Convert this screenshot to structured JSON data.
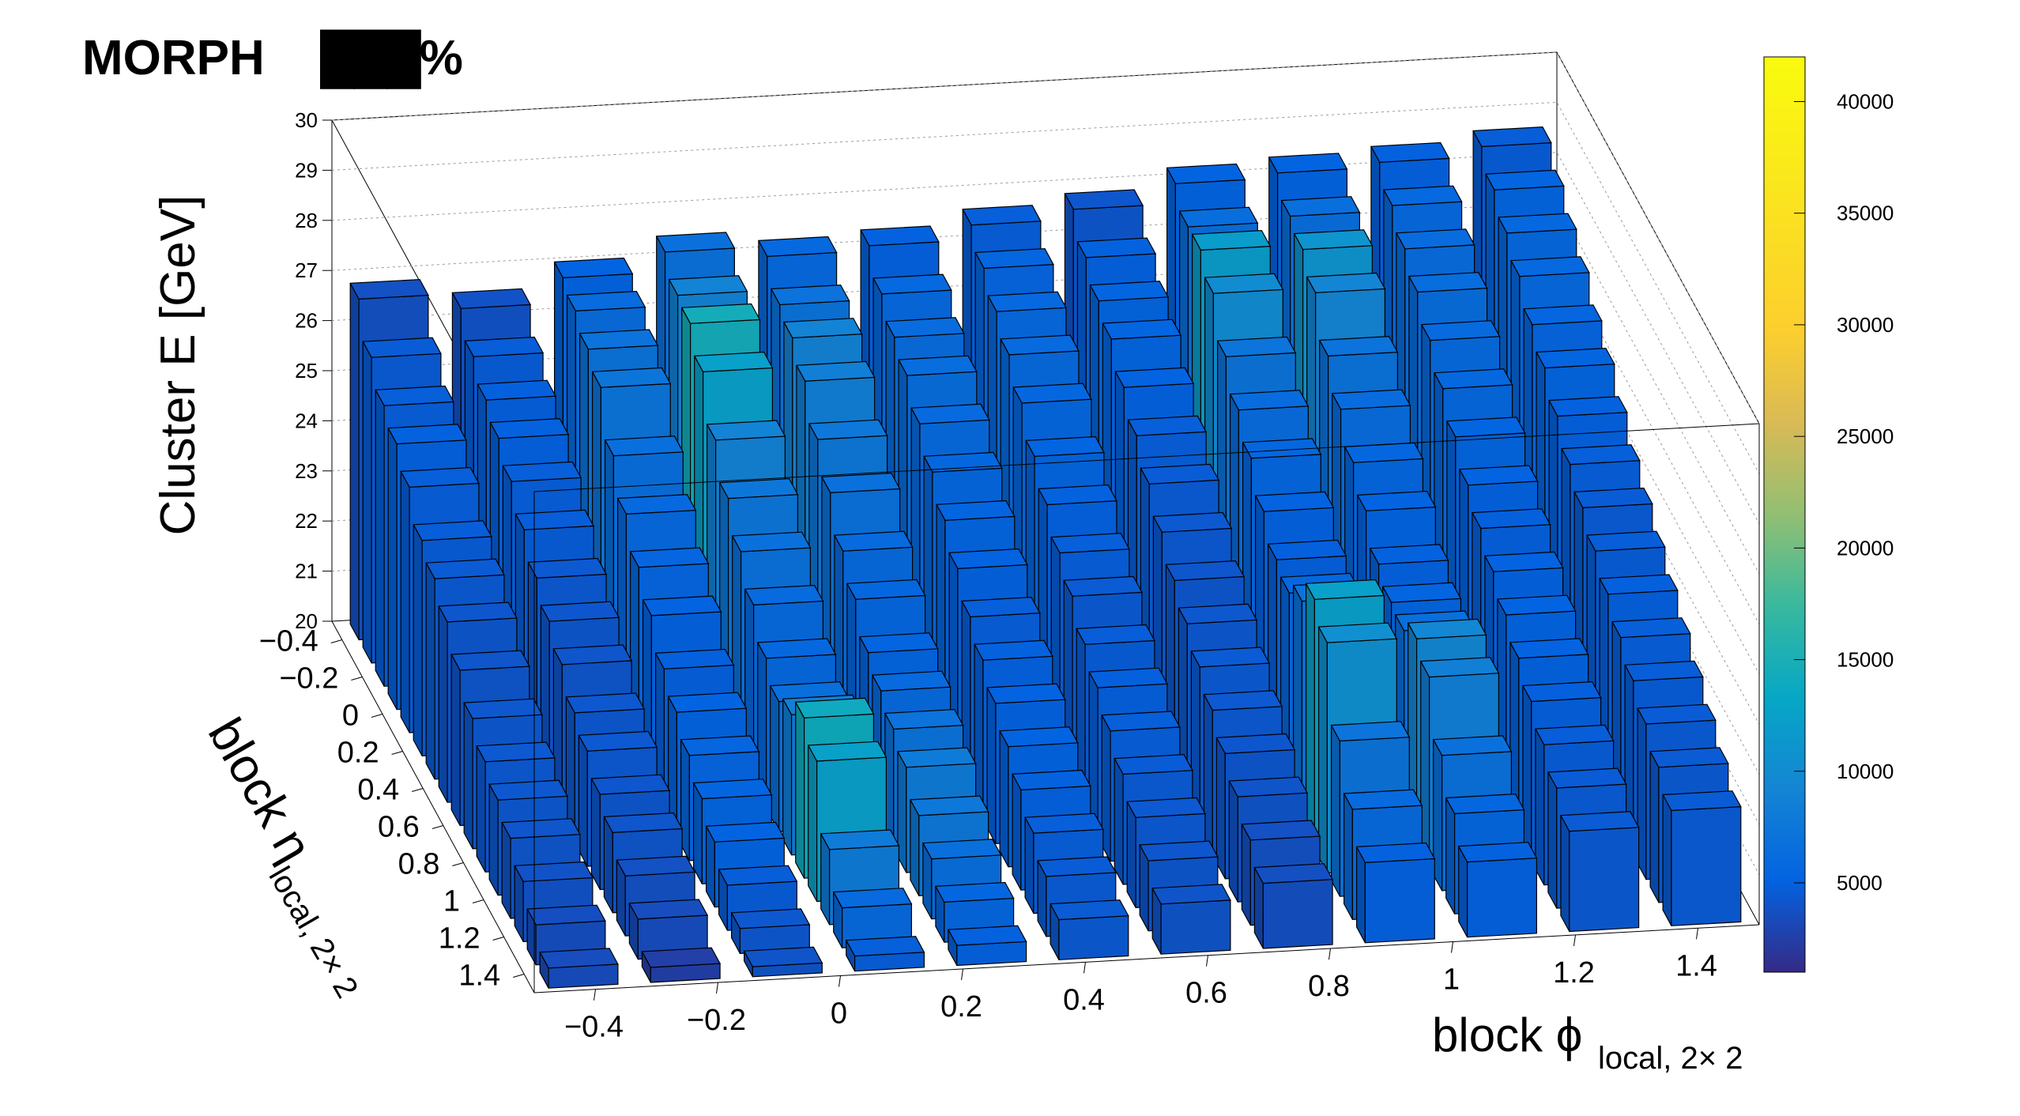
{
  "watermark": {
    "text": "MORPH",
    "redacted": "███%"
  },
  "chart_data": {
    "type": "lego",
    "z_axis": {
      "label": "Cluster E  [GeV]",
      "range": [
        20,
        30
      ],
      "ticks": [
        "20",
        "21",
        "22",
        "23",
        "24",
        "25",
        "26",
        "27",
        "28",
        "29",
        "30"
      ]
    },
    "phi_axis": {
      "label": "block ϕ",
      "subscript": "local, 2× 2",
      "range": [
        -0.5,
        1.5
      ],
      "ticks": [
        "−0.4",
        "−0.2",
        "0",
        "0.2",
        "0.4",
        "0.6",
        "0.8",
        "1",
        "1.2",
        "1.4"
      ]
    },
    "eta_axis": {
      "label": "block η",
      "subscript": "local, 2× 2",
      "range": [
        -0.5,
        1.5
      ],
      "ticks": [
        "−0.4",
        "−0.2",
        "0",
        "0.2",
        "0.4",
        "0.6",
        "0.8",
        "1",
        "1.2",
        "1.4"
      ]
    },
    "colorbar": {
      "range": [
        1000,
        42000
      ],
      "ticks": [
        "5000",
        "10000",
        "15000",
        "20000",
        "25000",
        "30000",
        "35000",
        "40000"
      ]
    },
    "phi_bins": [
      "−0.417",
      "−0.25",
      "−0.083",
      "0.083",
      "0.25",
      "0.417",
      "0.583",
      "0.75",
      "0.917",
      "1.083",
      "1.25",
      "1.417"
    ],
    "eta_bins": [
      "−0.44",
      "−0.31",
      "−0.19",
      "−0.06",
      "0.06",
      "0.19",
      "0.31",
      "0.44",
      "0.56",
      "0.69",
      "0.81",
      "0.94",
      "1.06",
      "1.19",
      "1.31",
      "1.44"
    ],
    "bars": [
      [
        [
          26.8,
          3800
        ],
        [
          26.1,
          4600
        ],
        [
          25.6,
          4800
        ],
        [
          25.3,
          5000
        ],
        [
          24.9,
          4800
        ],
        [
          24.3,
          4700
        ],
        [
          24.0,
          4500
        ],
        [
          23.6,
          4200
        ],
        [
          23.1,
          4100
        ],
        [
          22.6,
          4300
        ],
        [
          22.2,
          4400
        ],
        [
          21.9,
          4300
        ],
        [
          21.6,
          4100
        ],
        [
          21.2,
          3900
        ],
        [
          20.8,
          3600
        ],
        [
          20.4,
          3500
        ]
      ],
      [
        [
          26.5,
          3900
        ],
        [
          26.0,
          4700
        ],
        [
          25.6,
          4900
        ],
        [
          25.3,
          5000
        ],
        [
          24.9,
          4800
        ],
        [
          24.4,
          4700
        ],
        [
          23.9,
          4400
        ],
        [
          23.5,
          4200
        ],
        [
          23.1,
          4100
        ],
        [
          22.6,
          4300
        ],
        [
          22.3,
          4400
        ],
        [
          21.9,
          4200
        ],
        [
          21.6,
          4100
        ],
        [
          21.2,
          3800
        ],
        [
          20.8,
          3500
        ],
        [
          20.3,
          2500
        ]
      ],
      [
        [
          27.0,
          5200
        ],
        [
          26.8,
          6200
        ],
        [
          26.5,
          7000
        ],
        [
          26.2,
          7300
        ],
        [
          25.3,
          6500
        ],
        [
          24.6,
          5800
        ],
        [
          24.0,
          5500
        ],
        [
          23.5,
          5100
        ],
        [
          22.9,
          4900
        ],
        [
          22.5,
          5200
        ],
        [
          22.1,
          5500
        ],
        [
          21.7,
          5400
        ],
        [
          21.3,
          5200
        ],
        [
          20.9,
          4700
        ],
        [
          20.5,
          4300
        ],
        [
          20.2,
          4000
        ]
      ],
      [
        [
          27.4,
          6800
        ],
        [
          27.0,
          9000
        ],
        [
          26.9,
          14500
        ],
        [
          26.4,
          12500
        ],
        [
          25.5,
          9000
        ],
        [
          24.8,
          7500
        ],
        [
          24.2,
          6800
        ],
        [
          23.6,
          6000
        ],
        [
          23.0,
          5700
        ],
        [
          22.6,
          6500
        ],
        [
          22.8,
          8500
        ],
        [
          23.2,
          14000
        ],
        [
          22.8,
          12500
        ],
        [
          21.5,
          8000
        ],
        [
          20.8,
          6000
        ],
        [
          20.3,
          4800
        ]
      ],
      [
        [
          27.2,
          5800
        ],
        [
          26.7,
          7000
        ],
        [
          26.5,
          9000
        ],
        [
          26.1,
          8500
        ],
        [
          25.4,
          7600
        ],
        [
          24.8,
          6800
        ],
        [
          24.1,
          6000
        ],
        [
          23.6,
          5600
        ],
        [
          23.0,
          5300
        ],
        [
          22.7,
          6000
        ],
        [
          22.4,
          7000
        ],
        [
          22.1,
          8000
        ],
        [
          21.6,
          7600
        ],
        [
          21.2,
          6500
        ],
        [
          20.8,
          5600
        ],
        [
          20.4,
          5000
        ]
      ],
      [
        [
          27.3,
          5000
        ],
        [
          26.8,
          5800
        ],
        [
          26.4,
          6200
        ],
        [
          26.1,
          6300
        ],
        [
          25.6,
          6000
        ],
        [
          25.1,
          5600
        ],
        [
          24.6,
          5300
        ],
        [
          24.1,
          5100
        ],
        [
          23.6,
          4800
        ],
        [
          23.2,
          5000
        ],
        [
          22.8,
          5100
        ],
        [
          22.4,
          5200
        ],
        [
          22.0,
          5000
        ],
        [
          21.6,
          4800
        ],
        [
          21.2,
          4600
        ],
        [
          20.8,
          4500
        ]
      ],
      [
        [
          27.6,
          4800
        ],
        [
          27.2,
          5500
        ],
        [
          26.8,
          5800
        ],
        [
          26.4,
          6000
        ],
        [
          25.9,
          5600
        ],
        [
          25.3,
          5300
        ],
        [
          24.8,
          5000
        ],
        [
          24.3,
          4800
        ],
        [
          23.9,
          4500
        ],
        [
          23.4,
          4700
        ],
        [
          23.0,
          4900
        ],
        [
          22.6,
          4800
        ],
        [
          22.2,
          4600
        ],
        [
          21.8,
          4400
        ],
        [
          21.4,
          4200
        ],
        [
          21.0,
          4000
        ]
      ],
      [
        [
          27.8,
          4200
        ],
        [
          27.3,
          5000
        ],
        [
          26.9,
          5300
        ],
        [
          26.6,
          5400
        ],
        [
          26.1,
          5100
        ],
        [
          25.6,
          4800
        ],
        [
          25.1,
          4600
        ],
        [
          24.6,
          4400
        ],
        [
          24.1,
          4200
        ],
        [
          23.7,
          4300
        ],
        [
          23.3,
          4500
        ],
        [
          22.9,
          4400
        ],
        [
          22.5,
          4200
        ],
        [
          22.1,
          4000
        ],
        [
          21.7,
          3800
        ],
        [
          21.3,
          3700
        ]
      ],
      [
        [
          28.2,
          5200
        ],
        [
          27.8,
          6400
        ],
        [
          27.8,
          12000
        ],
        [
          27.4,
          10000
        ],
        [
          26.6,
          7200
        ],
        [
          26.0,
          6200
        ],
        [
          25.5,
          5600
        ],
        [
          24.9,
          5100
        ],
        [
          24.4,
          4900
        ],
        [
          24.2,
          5600
        ],
        [
          24.5,
          7000
        ],
        [
          25.0,
          12500
        ],
        [
          24.6,
          10500
        ],
        [
          23.1,
          7200
        ],
        [
          22.2,
          6000
        ],
        [
          21.6,
          5000
        ]
      ],
      [
        [
          28.3,
          5200
        ],
        [
          27.9,
          6500
        ],
        [
          27.7,
          11000
        ],
        [
          27.3,
          9200
        ],
        [
          26.5,
          7000
        ],
        [
          25.9,
          6200
        ],
        [
          25.3,
          5600
        ],
        [
          24.8,
          5200
        ],
        [
          24.2,
          5000
        ],
        [
          23.9,
          5400
        ],
        [
          23.8,
          6500
        ],
        [
          24.1,
          9500
        ],
        [
          23.8,
          8500
        ],
        [
          22.7,
          6800
        ],
        [
          22.0,
          5600
        ],
        [
          21.5,
          5000
        ]
      ],
      [
        [
          28.4,
          5000
        ],
        [
          28.0,
          5800
        ],
        [
          27.6,
          6200
        ],
        [
          27.2,
          6300
        ],
        [
          26.7,
          6000
        ],
        [
          26.2,
          5700
        ],
        [
          25.7,
          5400
        ],
        [
          25.2,
          5100
        ],
        [
          24.8,
          4900
        ],
        [
          24.4,
          5100
        ],
        [
          24.0,
          5200
        ],
        [
          23.6,
          5100
        ],
        [
          23.2,
          4900
        ],
        [
          22.8,
          4700
        ],
        [
          22.4,
          4600
        ],
        [
          22.0,
          4500
        ]
      ],
      [
        [
          28.6,
          4700
        ],
        [
          28.2,
          5400
        ],
        [
          27.8,
          5700
        ],
        [
          27.4,
          5800
        ],
        [
          26.9,
          5500
        ],
        [
          26.5,
          5300
        ],
        [
          26.0,
          5000
        ],
        [
          25.5,
          4800
        ],
        [
          25.1,
          4600
        ],
        [
          24.7,
          4700
        ],
        [
          24.3,
          4900
        ],
        [
          23.9,
          4800
        ],
        [
          23.5,
          4700
        ],
        [
          23.1,
          4600
        ],
        [
          22.7,
          4500
        ],
        [
          22.3,
          4600
        ]
      ]
    ]
  }
}
